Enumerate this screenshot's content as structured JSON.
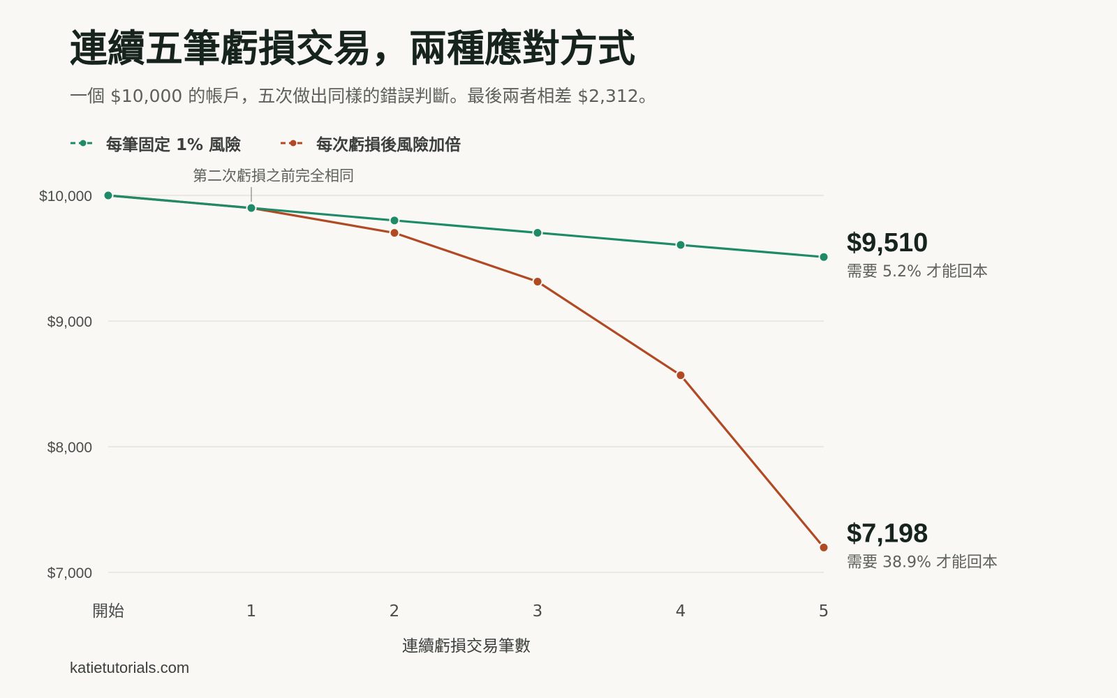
{
  "chart_data": {
    "type": "line",
    "title": "連續五筆虧損交易，兩種應對方式",
    "subtitle": "一個 $10,000 的帳戶，五次做出同樣的錯誤判斷。最後兩者相差 $2,312。",
    "xlabel": "連續虧損交易筆數",
    "ylabel": "",
    "categories": [
      "開始",
      "1",
      "2",
      "3",
      "4",
      "5"
    ],
    "ylim": [
      7000,
      10000
    ],
    "yticks": [
      {
        "value": 10000,
        "label": "$10,000"
      },
      {
        "value": 9000,
        "label": "$9,000"
      },
      {
        "value": 8000,
        "label": "$8,000"
      },
      {
        "value": 7000,
        "label": "$7,000"
      }
    ],
    "grid": true,
    "legend_position": "top-left",
    "series": [
      {
        "name": "每筆固定 1% 風險",
        "color": "#1e8a67",
        "values": [
          10000,
          9900,
          9801,
          9703,
          9606,
          9510
        ],
        "end_value_label": "$9,510",
        "end_note": "需要 5.2% 才能回本"
      },
      {
        "name": "每次虧損後風險加倍",
        "color": "#b04a24",
        "values": [
          10000,
          9900,
          9702,
          9314,
          8569,
          7198
        ],
        "end_value_label": "$7,198",
        "end_note": "需要 38.9% 才能回本"
      }
    ],
    "annotation": {
      "text": "第二次虧損之前完全相同",
      "category_index": 1
    }
  },
  "source": "katietutorials.com"
}
